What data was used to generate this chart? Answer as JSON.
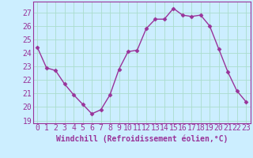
{
  "x": [
    0,
    1,
    2,
    3,
    4,
    5,
    6,
    7,
    8,
    9,
    10,
    11,
    12,
    13,
    14,
    15,
    16,
    17,
    18,
    19,
    20,
    21,
    22,
    23
  ],
  "y": [
    24.4,
    22.9,
    22.7,
    21.7,
    20.9,
    20.2,
    19.5,
    19.8,
    20.9,
    22.8,
    24.1,
    24.2,
    25.8,
    26.5,
    26.5,
    27.3,
    26.8,
    26.7,
    26.8,
    26.0,
    24.3,
    22.6,
    21.2,
    20.4
  ],
  "line_color": "#993399",
  "marker": "D",
  "markersize": 2.5,
  "linewidth": 1.0,
  "bg_color": "#cceeff",
  "grid_color": "#aaddcc",
  "xlabel": "Windchill (Refroidissement éolien,°C)",
  "xlabel_fontsize": 7,
  "tick_fontsize": 7,
  "ylim": [
    18.8,
    27.8
  ],
  "yticks": [
    19,
    20,
    21,
    22,
    23,
    24,
    25,
    26,
    27
  ],
  "xlim": [
    -0.5,
    23.5
  ],
  "xticks": [
    0,
    1,
    2,
    3,
    4,
    5,
    6,
    7,
    8,
    9,
    10,
    11,
    12,
    13,
    14,
    15,
    16,
    17,
    18,
    19,
    20,
    21,
    22,
    23
  ]
}
